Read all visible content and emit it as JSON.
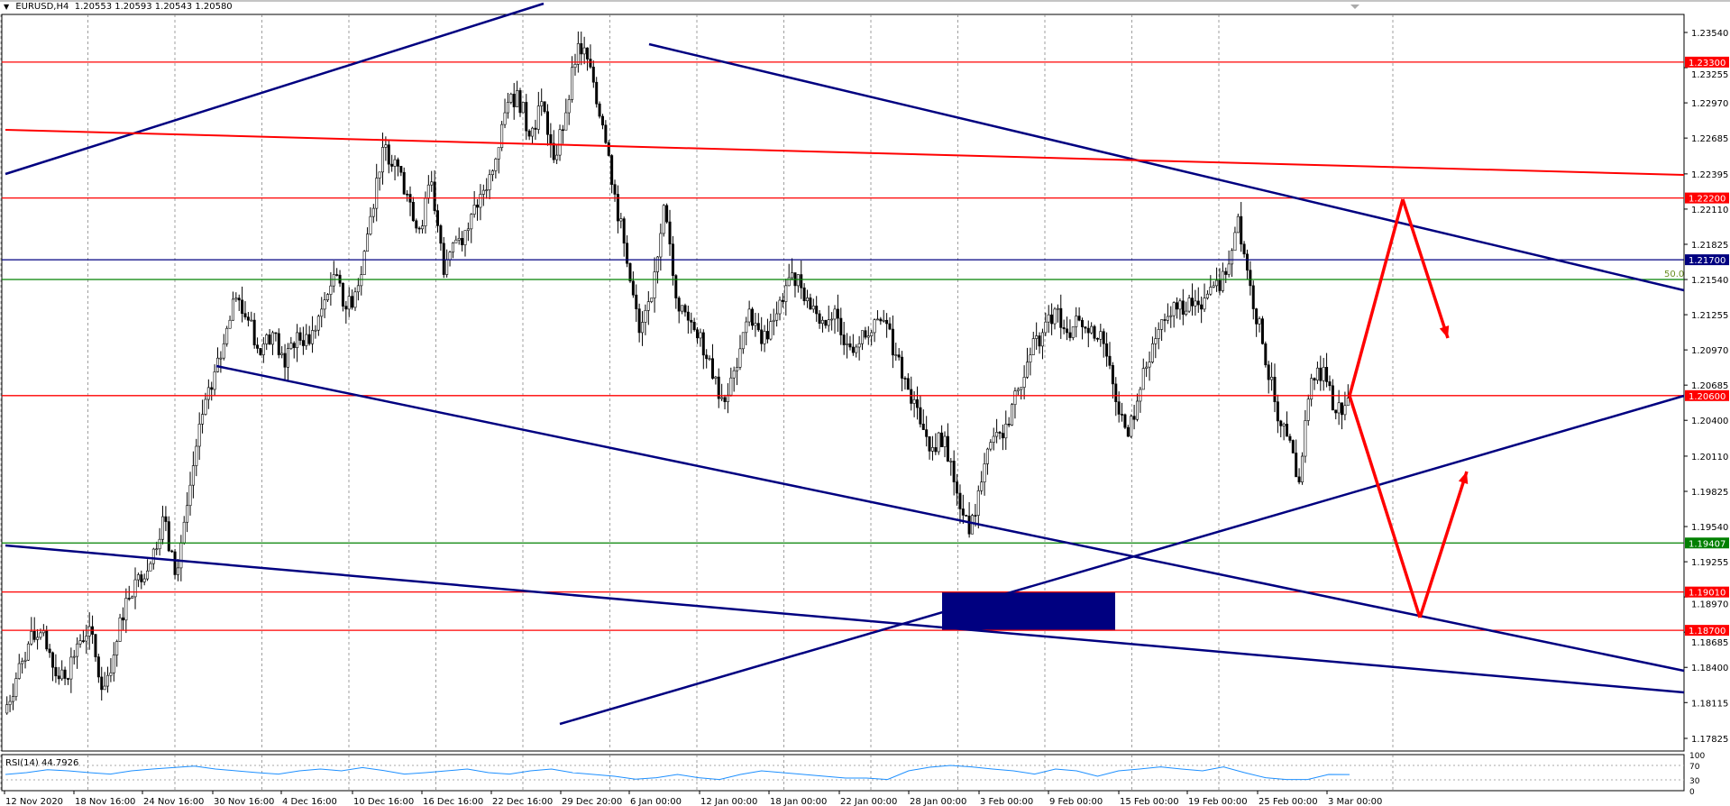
{
  "header": {
    "symbol_timeframe": "EURUSD,H4",
    "ohlc": "1.20553 1.20593 1.20543 1.20580",
    "menu_icon": "triangle-down-icon"
  },
  "chart_data": {
    "type": "candlestick",
    "symbol": "EURUSD",
    "timeframe": "H4",
    "ylim": [
      1.1768,
      1.2372
    ],
    "grid": true,
    "y_tick_labels": [
      "1.23540",
      "1.23255",
      "1.22970",
      "1.22685",
      "1.22395",
      "1.22110",
      "1.21825",
      "1.21540",
      "1.21255",
      "1.20970",
      "1.20685",
      "1.20400",
      "1.20110",
      "1.19825",
      "1.19540",
      "1.19255",
      "1.18970",
      "1.18685",
      "1.18400",
      "1.18115",
      "1.17825"
    ],
    "x_tick_labels": [
      "12 Nov 2020",
      "18 Nov 16:00",
      "24 Nov 16:00",
      "30 Nov 16:00",
      "4 Dec 16:00",
      "10 Dec 16:00",
      "16 Dec 16:00",
      "22 Dec 16:00",
      "29 Dec 20:00",
      "6 Jan 00:00",
      "12 Jan 00:00",
      "18 Jan 00:00",
      "22 Jan 00:00",
      "28 Jan 00:00",
      "3 Feb 00:00",
      "9 Feb 00:00",
      "15 Feb 00:00",
      "19 Feb 00:00",
      "25 Feb 00:00",
      "3 Mar 00:00"
    ],
    "close_path": [
      1.1803,
      1.1831,
      1.1859,
      1.1868,
      1.184,
      1.1831,
      1.1859,
      1.1873,
      1.1822,
      1.185,
      1.1896,
      1.1915,
      1.1924,
      1.1962,
      1.1915,
      1.1971,
      1.2037,
      1.2065,
      1.2102,
      1.2139,
      1.2121,
      1.2093,
      1.2111,
      1.2083,
      1.2111,
      1.2102,
      1.213,
      1.2158,
      1.213,
      1.2149,
      1.2205,
      1.2261,
      1.2251,
      1.2223,
      1.2195,
      1.2233,
      1.2158,
      1.2186,
      1.2195,
      1.2223,
      1.2242,
      1.2289,
      1.2307,
      1.227,
      1.2298,
      1.2251,
      1.2289,
      1.2345,
      1.2326,
      1.2279,
      1.2223,
      1.2167,
      1.2111,
      1.2139,
      1.2214,
      1.2139,
      1.2121,
      1.2111,
      1.2074,
      1.2055,
      1.2083,
      1.213,
      1.2102,
      1.2121,
      1.2149,
      1.2158,
      1.213,
      1.2121,
      1.213,
      1.2102,
      1.2102,
      1.2111,
      1.2121,
      1.2093,
      1.2065,
      1.2037,
      1.2018,
      1.2027,
      1.1981,
      1.1948,
      1.199,
      1.2027,
      1.2037,
      1.2065,
      1.2093,
      1.2111,
      1.213,
      1.2111,
      1.2121,
      1.2116,
      1.2102,
      1.2055,
      1.2027,
      1.2065,
      1.2102,
      1.2121,
      1.213,
      1.2139,
      1.213,
      1.2149,
      1.2158,
      1.2205,
      1.2149,
      1.2102,
      1.2055,
      1.2027,
      1.199,
      1.2074,
      1.2083,
      1.2046,
      1.2058
    ],
    "horizontal_levels": [
      {
        "price": 1.233,
        "label": "1.23300",
        "color": "#ff0000",
        "tagged": true
      },
      {
        "price": 1.222,
        "label": "1.22200",
        "color": "#ff0000",
        "tagged": true
      },
      {
        "price": 1.217,
        "label": "1.21700",
        "color": "#000080",
        "tagged": true
      },
      {
        "price": 1.2154,
        "label": "50.0",
        "color": "#008000",
        "tagged": false
      },
      {
        "price": 1.206,
        "label": "1.20600",
        "color": "#ff0000",
        "tagged": true
      },
      {
        "price": 1.19407,
        "label": "1.19407",
        "color": "#008000",
        "tagged": true
      },
      {
        "price": 1.1901,
        "label": "1.19010",
        "color": "#ff0000",
        "tagged": true
      },
      {
        "price": 1.187,
        "label": "1.18700",
        "color": "#ff0000",
        "tagged": true
      }
    ],
    "zone": {
      "from": 1.187,
      "to": 1.1901,
      "color": "#000080"
    },
    "candle_colors": {
      "bull_fill": "#ffffff",
      "bear_fill": "#000000",
      "outline": "#000000"
    },
    "trendline_color": "#000080",
    "arrow_color": "#ff0000",
    "indicator": {
      "label": "RSI(14) 44.7926",
      "levels": [
        "100",
        "70",
        "30",
        "0"
      ],
      "level_values": [
        100,
        70,
        30,
        0
      ],
      "dotted_levels": [
        70,
        30
      ],
      "color": "#1e90ff",
      "values": [
        45,
        50,
        58,
        55,
        50,
        46,
        55,
        60,
        64,
        68,
        60,
        55,
        50,
        46,
        55,
        60,
        55,
        64,
        56,
        46,
        50,
        55,
        60,
        50,
        46,
        55,
        60,
        50,
        45,
        40,
        32,
        36,
        45,
        36,
        31,
        45,
        55,
        50,
        45,
        40,
        35,
        35,
        31,
        55,
        65,
        70,
        66,
        60,
        55,
        46,
        60,
        55,
        40,
        55,
        60,
        66,
        60,
        55,
        66,
        50,
        36,
        31,
        31,
        45,
        44.79
      ]
    }
  }
}
